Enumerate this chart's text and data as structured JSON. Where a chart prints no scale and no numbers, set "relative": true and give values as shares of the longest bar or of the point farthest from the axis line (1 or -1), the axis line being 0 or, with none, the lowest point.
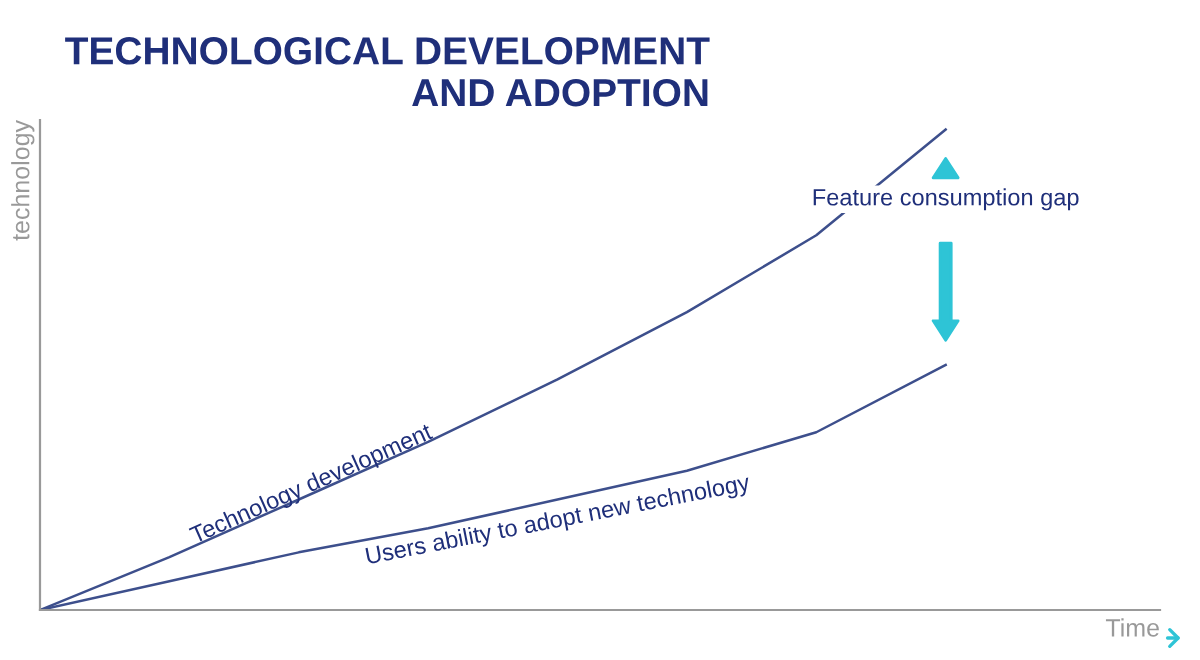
{
  "chart_data": {
    "type": "line",
    "title": "TECHNOLOGICAL DEVELOPMENT AND ADOPTION",
    "xlabel": "Time",
    "ylabel": "technology",
    "relative": true,
    "categories": [
      null,
      null,
      null,
      null,
      null,
      null,
      null,
      null
    ],
    "series": [
      {
        "color": "#3d4f8c",
        "values": [
          0,
          0.11,
          0.23,
          0.35,
          0.48,
          0.62,
          0.78,
          1
        ]
      },
      {
        "color": "#3d4f8c",
        "values": [
          0,
          0.06,
          0.12,
          0.17,
          0.23,
          0.29,
          0.37,
          0.51
        ]
      }
    ],
    "annotations": [
      "Technology development",
      "Users ability to adopt new technology",
      "Feature consumption gap"
    ],
    "legend": false,
    "marker": "none",
    "line_style": "solid"
  }
}
